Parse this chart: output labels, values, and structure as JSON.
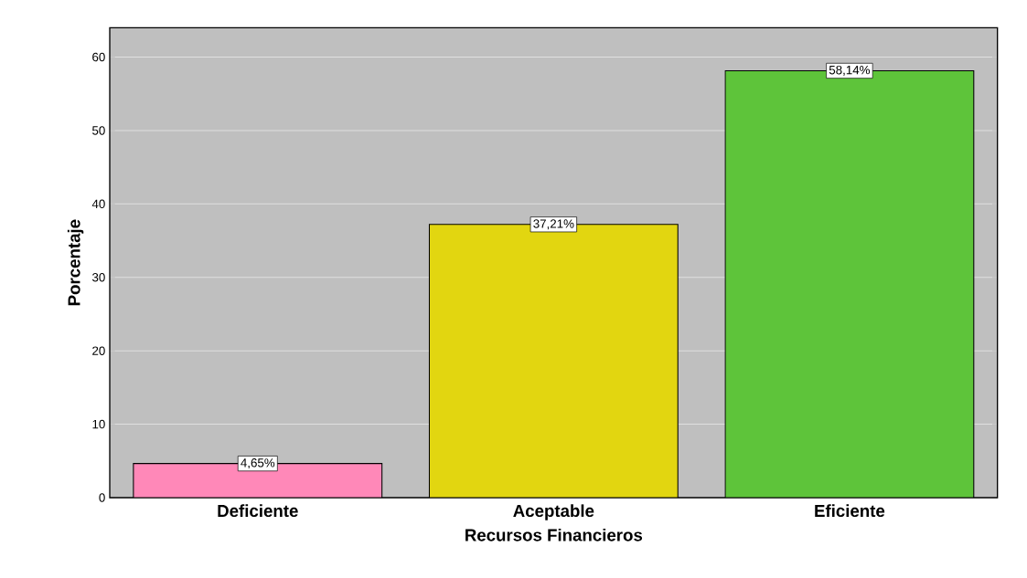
{
  "chart_data": {
    "type": "bar",
    "xlabel": "Recursos Financieros",
    "ylabel": "Porcentaje",
    "categories": [
      "Deficiente",
      "Aceptable",
      "Eficiente"
    ],
    "values": [
      4.65,
      37.21,
      58.14
    ],
    "colors": [
      "#ff88b8",
      "#e2d610",
      "#5ec43a"
    ],
    "value_labels": [
      "4,65%",
      "37,21%",
      "58,14%"
    ],
    "ylim": [
      0,
      64
    ],
    "yticks": [
      0,
      10,
      20,
      30,
      40,
      50,
      60
    ],
    "grid": "y"
  }
}
